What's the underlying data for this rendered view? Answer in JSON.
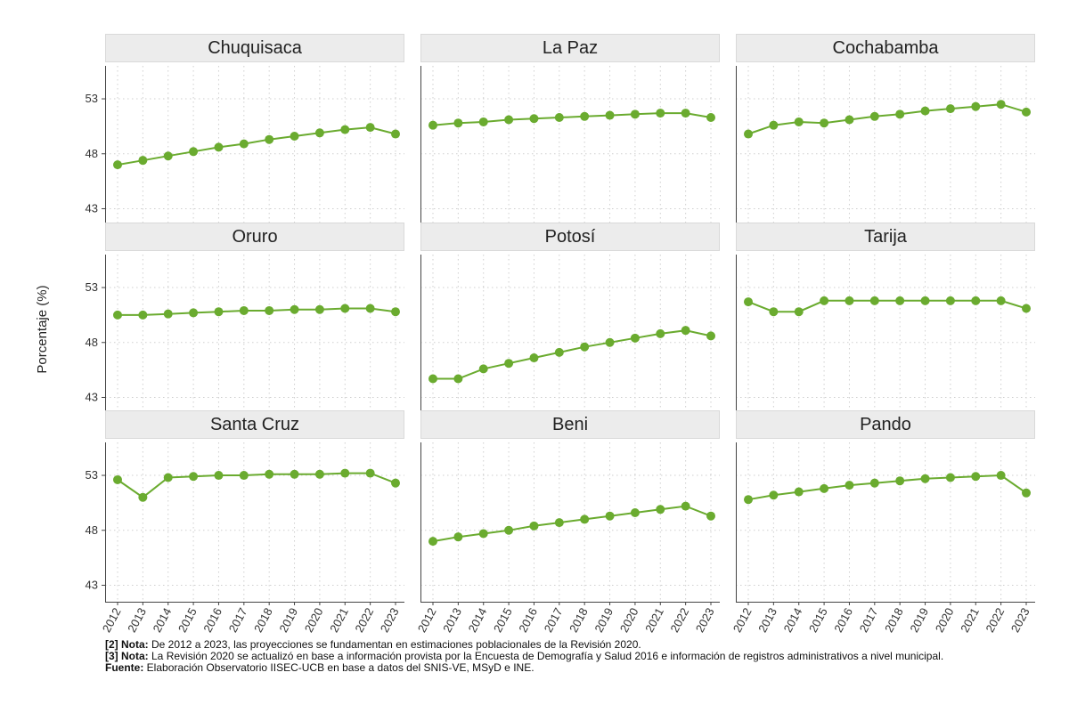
{
  "chart_data": {
    "type": "line",
    "ylabel": "Porcentaje (%)",
    "ylim": [
      41.5,
      56
    ],
    "yticks": [
      43,
      48,
      53
    ],
    "x": [
      2012,
      2013,
      2014,
      2015,
      2016,
      2017,
      2018,
      2019,
      2020,
      2021,
      2022,
      2023
    ],
    "x_tick_labels": [
      "2012",
      "2013",
      "2014",
      "2015",
      "2016",
      "2017",
      "2018",
      "2019",
      "2020",
      "2021",
      "2022",
      "2023"
    ],
    "grid": true,
    "line_color": "#6aab2f",
    "panels": [
      {
        "title": "Chuquisaca",
        "values": [
          47.0,
          47.4,
          47.8,
          48.2,
          48.6,
          48.9,
          49.3,
          49.6,
          49.9,
          50.2,
          50.4,
          49.8
        ]
      },
      {
        "title": "La Paz",
        "values": [
          50.6,
          50.8,
          50.9,
          51.1,
          51.2,
          51.3,
          51.4,
          51.5,
          51.6,
          51.7,
          51.7,
          51.3
        ]
      },
      {
        "title": "Cochabamba",
        "values": [
          49.8,
          50.6,
          50.9,
          50.8,
          51.1,
          51.4,
          51.6,
          51.9,
          52.1,
          52.3,
          52.5,
          51.8
        ]
      },
      {
        "title": "Oruro",
        "values": [
          50.5,
          50.5,
          50.6,
          50.7,
          50.8,
          50.9,
          50.9,
          51.0,
          51.0,
          51.1,
          51.1,
          50.8
        ]
      },
      {
        "title": "Potosí",
        "values": [
          44.7,
          44.7,
          45.6,
          46.1,
          46.6,
          47.1,
          47.6,
          48.0,
          48.4,
          48.8,
          49.1,
          48.6
        ]
      },
      {
        "title": "Tarija",
        "values": [
          51.7,
          50.8,
          50.8,
          51.8,
          51.8,
          51.8,
          51.8,
          51.8,
          51.8,
          51.8,
          51.8,
          51.1
        ]
      },
      {
        "title": "Santa Cruz",
        "values": [
          52.6,
          51.0,
          52.8,
          52.9,
          53.0,
          53.0,
          53.1,
          53.1,
          53.1,
          53.2,
          53.2,
          52.3
        ]
      },
      {
        "title": "Beni",
        "values": [
          47.0,
          47.4,
          47.7,
          48.0,
          48.4,
          48.7,
          49.0,
          49.3,
          49.6,
          49.9,
          50.2,
          49.3
        ]
      },
      {
        "title": "Pando",
        "values": [
          50.8,
          51.2,
          51.5,
          51.8,
          52.1,
          52.3,
          52.5,
          52.7,
          52.8,
          52.9,
          53.0,
          51.4
        ]
      }
    ]
  },
  "notes": [
    {
      "label": "[2] Nota:",
      "text": " De 2012 a 2023, las proyecciones se fundamentan en estimaciones poblacionales de la Revisión 2020."
    },
    {
      "label": "[3] Nota:",
      "text": " La Revisión 2020 se actualizó en base a información provista por la Encuesta de Demografía y Salud 2016 e información de registros administrativos a nivel municipal."
    },
    {
      "label": "Fuente:",
      "text": " Elaboración Observatorio IISEC-UCB en base a datos del SNIS-VE, MSyD e INE."
    }
  ]
}
